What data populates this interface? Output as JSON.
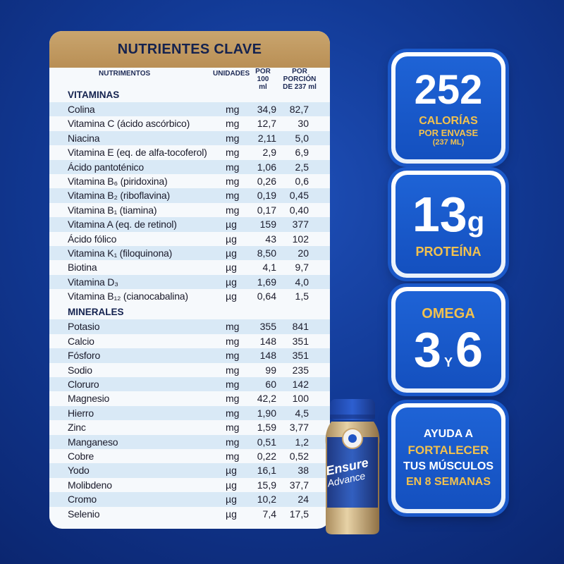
{
  "table": {
    "title": "NUTRIENTES CLAVE",
    "headers": {
      "nutrient": "NUTRIMENTOS",
      "unit": "UNIDADES",
      "per100_line1": "POR",
      "per100_line2": "100 ml",
      "portion_line1": "POR PORCIÓN",
      "portion_line2": "DE 237 ml"
    },
    "vitamins_label": "VITAMINAS",
    "vitamins": [
      {
        "name": "Colina",
        "unit": "mg",
        "v100": "34,9",
        "portion": "82,7"
      },
      {
        "name": "Vitamina C (ácido ascórbico)",
        "unit": "mg",
        "v100": "12,7",
        "portion": "30"
      },
      {
        "name": "Niacina",
        "unit": "mg",
        "v100": "2,11",
        "portion": "5,0"
      },
      {
        "name": "Vitamina E (eq. de alfa-tocoferol)",
        "unit": "mg",
        "v100": "2,9",
        "portion": "6,9"
      },
      {
        "name": "Ácido pantoténico",
        "unit": "mg",
        "v100": "1,06",
        "portion": "2,5"
      },
      {
        "name": "Vitamina B₆ (piridoxina)",
        "unit": "mg",
        "v100": "0,26",
        "portion": "0,6"
      },
      {
        "name": "Vitamina B₂ (riboflavina)",
        "unit": "mg",
        "v100": "0,19",
        "portion": "0,45"
      },
      {
        "name": "Vitamina B₁ (tiamina)",
        "unit": "mg",
        "v100": "0,17",
        "portion": "0,40"
      },
      {
        "name": "Vitamina A (eq. de retinol)",
        "unit": "µg",
        "v100": "159",
        "portion": "377"
      },
      {
        "name": "Ácido fólico",
        "unit": "µg",
        "v100": "43",
        "portion": "102"
      },
      {
        "name": "Vitamina K₁ (filoquinona)",
        "unit": "µg",
        "v100": "8,50",
        "portion": "20"
      },
      {
        "name": "Biotina",
        "unit": "µg",
        "v100": "4,1",
        "portion": "9,7"
      },
      {
        "name": "Vitamina D₃",
        "unit": "µg",
        "v100": "1,69",
        "portion": "4,0"
      },
      {
        "name": "Vitamina B₁₂ (cianocabalina)",
        "unit": "µg",
        "v100": "0,64",
        "portion": "1,5"
      }
    ],
    "minerals_label": "MINERALES",
    "minerals": [
      {
        "name": "Potasio",
        "unit": "mg",
        "v100": "355",
        "portion": "841"
      },
      {
        "name": "Calcio",
        "unit": "mg",
        "v100": "148",
        "portion": "351"
      },
      {
        "name": "Fósforo",
        "unit": "mg",
        "v100": "148",
        "portion": "351"
      },
      {
        "name": "Sodio",
        "unit": "mg",
        "v100": "99",
        "portion": "235"
      },
      {
        "name": "Cloruro",
        "unit": "mg",
        "v100": "60",
        "portion": "142"
      },
      {
        "name": "Magnesio",
        "unit": "mg",
        "v100": "42,2",
        "portion": "100"
      },
      {
        "name": "Hierro",
        "unit": "mg",
        "v100": "1,90",
        "portion": "4,5"
      },
      {
        "name": "Zinc",
        "unit": "mg",
        "v100": "1,59",
        "portion": "3,77"
      },
      {
        "name": "Manganeso",
        "unit": "mg",
        "v100": "0,51",
        "portion": "1,2"
      },
      {
        "name": "Cobre",
        "unit": "mg",
        "v100": "0,22",
        "portion": "0,52"
      },
      {
        "name": "Yodo",
        "unit": "µg",
        "v100": "16,1",
        "portion": "38"
      },
      {
        "name": "Molibdeno",
        "unit": "µg",
        "v100": "15,9",
        "portion": "37,7"
      },
      {
        "name": "Cromo",
        "unit": "µg",
        "v100": "10,2",
        "portion": "24"
      },
      {
        "name": "Selenio",
        "unit": "µg",
        "v100": "7,4",
        "portion": "17,5"
      }
    ]
  },
  "boxes": {
    "calories": {
      "number": "252",
      "line1": "CALORÍAS",
      "line2": "POR ENVASE",
      "line3": "(237 ML)"
    },
    "protein": {
      "number": "13",
      "unit": "g",
      "label": "PROTEÍNA"
    },
    "omega": {
      "label": "OMEGA",
      "n1": "3",
      "y": "Y",
      "n2": "6"
    },
    "muscles": {
      "line1": "AYUDA A",
      "line2": "FORTALECER",
      "line3": "TUS MÚSCULOS",
      "line4": "EN 8 SEMANAS"
    }
  },
  "product": {
    "brand": "Ensure",
    "variant": "Advance"
  },
  "colors": {
    "background": "#123a96",
    "gold": "#f2c14e",
    "header_gold": "#c9a56e",
    "row_stripe": "#d9e9f6"
  }
}
